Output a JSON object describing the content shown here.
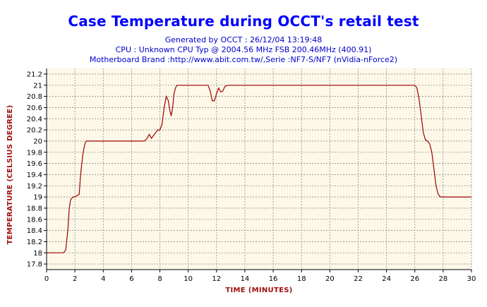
{
  "header": {
    "title": "Case Temperature during OCCT's retail test",
    "generated": "Generated by OCCT : 26/12/04 13:19:48",
    "cpu": "CPU : Unknown CPU Typ @ 2004.56 MHz FSB 200.46MHz (400.91)",
    "motherboard": "Motherboard Brand :http://www.abit.com.tw/,Serie :NF7-S/NF7 (nVidia-nForce2)"
  },
  "chart_data": {
    "type": "line",
    "title": "Case Temperature during OCCT's retail test",
    "xlabel": "TIME (MINUTES)",
    "ylabel": "TEMPERATURE (CELSIUS DEGREE)",
    "xlim": [
      0,
      30
    ],
    "ylim": [
      17.7,
      21.3
    ],
    "xticks": [
      0,
      2,
      4,
      6,
      8,
      10,
      12,
      14,
      16,
      18,
      20,
      22,
      24,
      26,
      28,
      30
    ],
    "yticks": [
      17.8,
      18,
      18.2,
      18.4,
      18.6,
      18.8,
      19,
      19.2,
      19.4,
      19.6,
      19.8,
      20,
      20.2,
      20.4,
      20.6,
      20.8,
      21,
      21.2
    ],
    "ytick_labels": [
      "17.8",
      "18",
      "18.2",
      "18.4",
      "18.6",
      "18.8",
      "19",
      "19.2",
      "19.4",
      "19.6",
      "19.8",
      "20",
      "20.2",
      "20.4",
      "20.6",
      "20.8",
      "21",
      "21.2"
    ],
    "grid": true,
    "line_color": "#a00000",
    "plot_background": "#fdf8e8",
    "series": [
      {
        "name": "",
        "x": [
          0,
          1.2,
          1.35,
          1.5,
          1.6,
          1.7,
          1.85,
          2.0,
          2.3,
          2.4,
          2.55,
          2.7,
          2.8,
          2.9,
          3.0,
          6.9,
          7.1,
          7.25,
          7.4,
          7.55,
          7.7,
          7.85,
          8.0,
          8.15,
          8.3,
          8.45,
          8.6,
          8.7,
          8.8,
          8.9,
          9.0,
          9.1,
          9.2,
          9.4,
          9.55,
          9.7,
          9.85,
          10.0,
          11.4,
          11.55,
          11.7,
          11.85,
          12.0,
          12.15,
          12.3,
          12.45,
          12.6,
          12.8,
          13.0,
          26.0,
          26.15,
          26.3,
          26.45,
          26.6,
          26.75,
          26.9,
          27.05,
          27.2,
          27.35,
          27.5,
          27.65,
          27.8,
          27.9,
          30
        ],
        "y": [
          18.0,
          18.0,
          18.05,
          18.4,
          18.8,
          18.95,
          19.0,
          19.0,
          19.05,
          19.4,
          19.75,
          19.95,
          20.0,
          20.0,
          20.0,
          20.0,
          20.05,
          20.12,
          20.05,
          20.1,
          20.15,
          20.2,
          20.2,
          20.3,
          20.6,
          20.8,
          20.72,
          20.55,
          20.45,
          20.6,
          20.85,
          20.95,
          21.0,
          21.0,
          21.0,
          21.0,
          21.0,
          21.0,
          21.0,
          20.9,
          20.72,
          20.72,
          20.85,
          20.95,
          20.88,
          20.9,
          20.98,
          21.0,
          21.0,
          21.0,
          20.95,
          20.75,
          20.45,
          20.15,
          20.02,
          20.0,
          19.95,
          19.8,
          19.5,
          19.2,
          19.05,
          19.0,
          19.0,
          19.0
        ]
      }
    ]
  }
}
